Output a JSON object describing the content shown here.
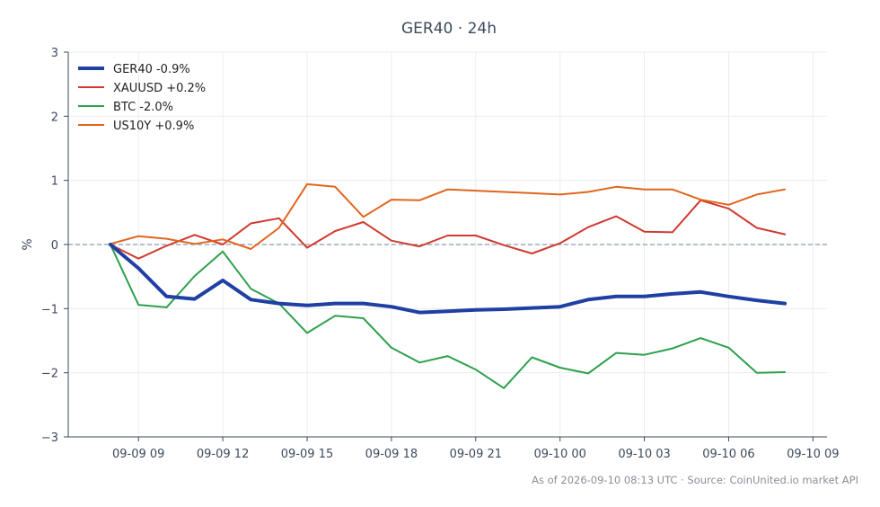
{
  "chart_data": {
    "type": "line",
    "title": "GER40 · 24h",
    "xlabel": "",
    "ylabel": "%",
    "ylim": [
      -3,
      3
    ],
    "xlim": [
      "2026-09-09 06:30",
      "2026-09-10 09:30"
    ],
    "x_ticks": [
      "2026-09-09 09:00",
      "2026-09-09 12:00",
      "2026-09-09 15:00",
      "2026-09-09 18:00",
      "2026-09-09 21:00",
      "2026-09-10 00:00",
      "2026-09-10 03:00",
      "2026-09-10 06:00",
      "2026-09-10 09:00"
    ],
    "x_tick_labels": [
      "09-09 09",
      "09-09 12",
      "09-09 15",
      "09-09 18",
      "09-09 21",
      "09-10 00",
      "09-10 03",
      "09-10 06",
      "09-10 09"
    ],
    "y_ticks": [
      -3,
      -2,
      -1,
      0,
      1,
      2,
      3
    ],
    "y_tick_labels": [
      "−3",
      "−2",
      "−1",
      "0",
      "1",
      "2",
      "3"
    ],
    "grid": true,
    "zero_line": true,
    "legend_position": "top-left",
    "x": [
      "2026-09-09 08:00",
      "2026-09-09 09:00",
      "2026-09-09 10:00",
      "2026-09-09 11:00",
      "2026-09-09 12:00",
      "2026-09-09 13:00",
      "2026-09-09 14:00",
      "2026-09-09 15:00",
      "2026-09-09 16:00",
      "2026-09-09 17:00",
      "2026-09-09 18:00",
      "2026-09-09 19:00",
      "2026-09-09 20:00",
      "2026-09-09 21:00",
      "2026-09-09 22:00",
      "2026-09-09 23:00",
      "2026-09-10 00:00",
      "2026-09-10 01:00",
      "2026-09-10 02:00",
      "2026-09-10 03:00",
      "2026-09-10 04:00",
      "2026-09-10 05:00",
      "2026-09-10 06:00",
      "2026-09-10 07:00",
      "2026-09-10 08:00"
    ],
    "series": [
      {
        "name": "GER40 -0.9%",
        "color": "#1f3fa3",
        "width": 4,
        "values": [
          0,
          -0.37,
          -0.81,
          -0.85,
          -0.56,
          -0.86,
          -0.92,
          -0.95,
          -0.92,
          -0.92,
          -0.97,
          -1.06,
          -1.04,
          -1.02,
          -1.01,
          -0.99,
          -0.97,
          -0.86,
          -0.81,
          -0.81,
          -0.77,
          -0.74,
          -0.81,
          -0.87,
          -0.92
        ]
      },
      {
        "name": "XAUUSD +0.2%",
        "color": "#d03a2f",
        "width": 2,
        "values": [
          0,
          -0.22,
          -0.02,
          0.15,
          0.0,
          0.33,
          0.41,
          -0.05,
          0.21,
          0.35,
          0.06,
          -0.03,
          0.14,
          0.14,
          -0.01,
          -0.14,
          0.02,
          0.27,
          0.44,
          0.2,
          0.19,
          0.69,
          0.56,
          0.26,
          0.16
        ]
      },
      {
        "name": "BTC -2.0%",
        "color": "#2ca04c",
        "width": 2,
        "values": [
          0,
          -0.94,
          -0.98,
          -0.49,
          -0.11,
          -0.69,
          -0.92,
          -1.38,
          -1.11,
          -1.15,
          -1.61,
          -1.84,
          -1.74,
          -1.95,
          -2.24,
          -1.76,
          -1.92,
          -2.01,
          -1.69,
          -1.72,
          -1.62,
          -1.46,
          -1.61,
          -2.0,
          -1.99
        ]
      },
      {
        "name": "US10Y +0.9%",
        "color": "#e0661e",
        "width": 2,
        "values": [
          0.01,
          0.13,
          0.09,
          0.01,
          0.08,
          -0.07,
          0.26,
          0.94,
          0.9,
          0.43,
          0.7,
          0.69,
          0.86,
          0.84,
          0.82,
          0.8,
          0.78,
          0.82,
          0.9,
          0.86,
          0.86,
          0.7,
          0.62,
          0.78,
          0.86
        ]
      }
    ],
    "footnote": "As of 2026-09-10 08:13 UTC · Source: CoinUnited.io market API"
  }
}
